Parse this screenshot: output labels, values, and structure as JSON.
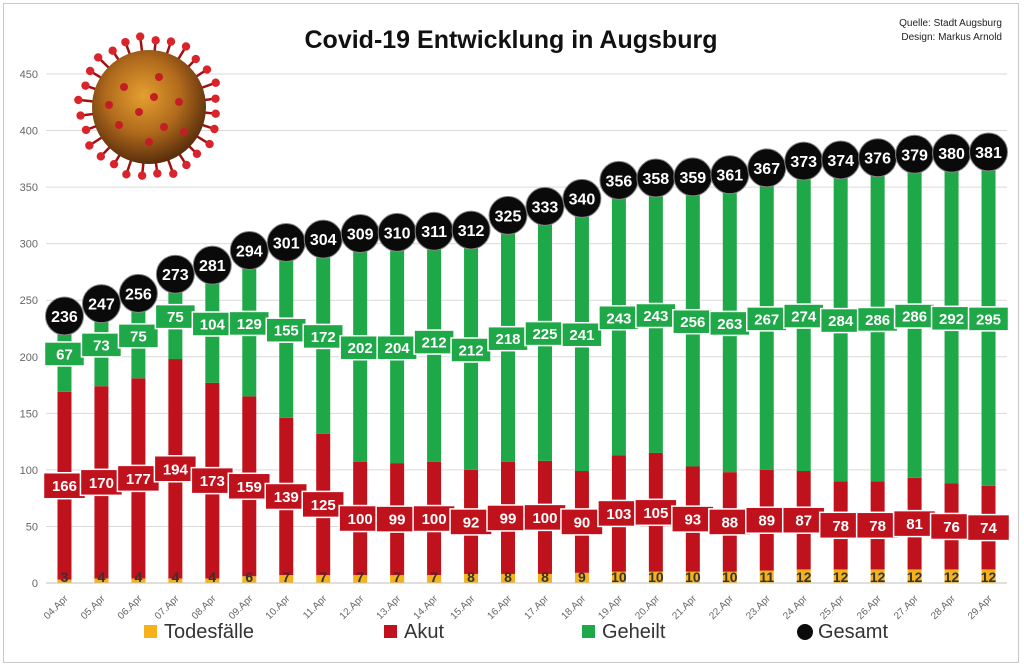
{
  "chart_data": {
    "type": "bar",
    "title": "Covid-19 Entwicklung in Augsburg",
    "source_line1": "Quelle: Stadt Augsburg",
    "source_line2": "Design: Markus Arnold",
    "categories": [
      "04.Apr",
      "05.Apr",
      "06.Apr",
      "07.Apr",
      "08.Apr",
      "09.Apr",
      "10.Apr",
      "11.Apr",
      "12.Apr",
      "13.Apr",
      "14.Apr",
      "15.Apr",
      "16.Apr",
      "17.Apr",
      "18.Apr",
      "19.Apr",
      "20.Apr",
      "21.Apr",
      "22.Apr",
      "23.Apr",
      "24.Apr",
      "25.Apr",
      "26.Apr",
      "27.Apr",
      "28.Apr",
      "29.Apr"
    ],
    "series": [
      {
        "name": "Todesfälle",
        "color": "#f5b21a",
        "values": [
          3,
          4,
          4,
          4,
          4,
          6,
          7,
          7,
          7,
          7,
          7,
          8,
          8,
          8,
          9,
          10,
          10,
          10,
          10,
          11,
          12,
          12,
          12,
          12,
          12,
          12
        ]
      },
      {
        "name": "Akut",
        "color": "#c0121d",
        "values": [
          166,
          170,
          177,
          194,
          173,
          159,
          139,
          125,
          100,
          99,
          100,
          92,
          99,
          100,
          90,
          103,
          105,
          93,
          88,
          89,
          87,
          78,
          78,
          81,
          76,
          74
        ]
      },
      {
        "name": "Geheilt",
        "color": "#1fa847",
        "values": [
          67,
          73,
          75,
          75,
          104,
          129,
          155,
          172,
          202,
          204,
          212,
          212,
          218,
          225,
          241,
          243,
          243,
          256,
          263,
          267,
          274,
          284,
          286,
          286,
          292,
          295
        ]
      },
      {
        "name": "Gesamt",
        "color": "#0a0a0a",
        "values": [
          236,
          247,
          256,
          273,
          281,
          294,
          301,
          304,
          309,
          310,
          311,
          312,
          325,
          333,
          340,
          356,
          358,
          359,
          361,
          367,
          373,
          374,
          376,
          379,
          380,
          381
        ]
      }
    ],
    "ylim": [
      0,
      450
    ],
    "yticks": [
      0,
      50,
      100,
      150,
      200,
      250,
      300,
      350,
      400,
      450
    ],
    "grid": true,
    "legend_position": "bottom"
  },
  "decoration": {
    "image": "coronavirus-image"
  }
}
